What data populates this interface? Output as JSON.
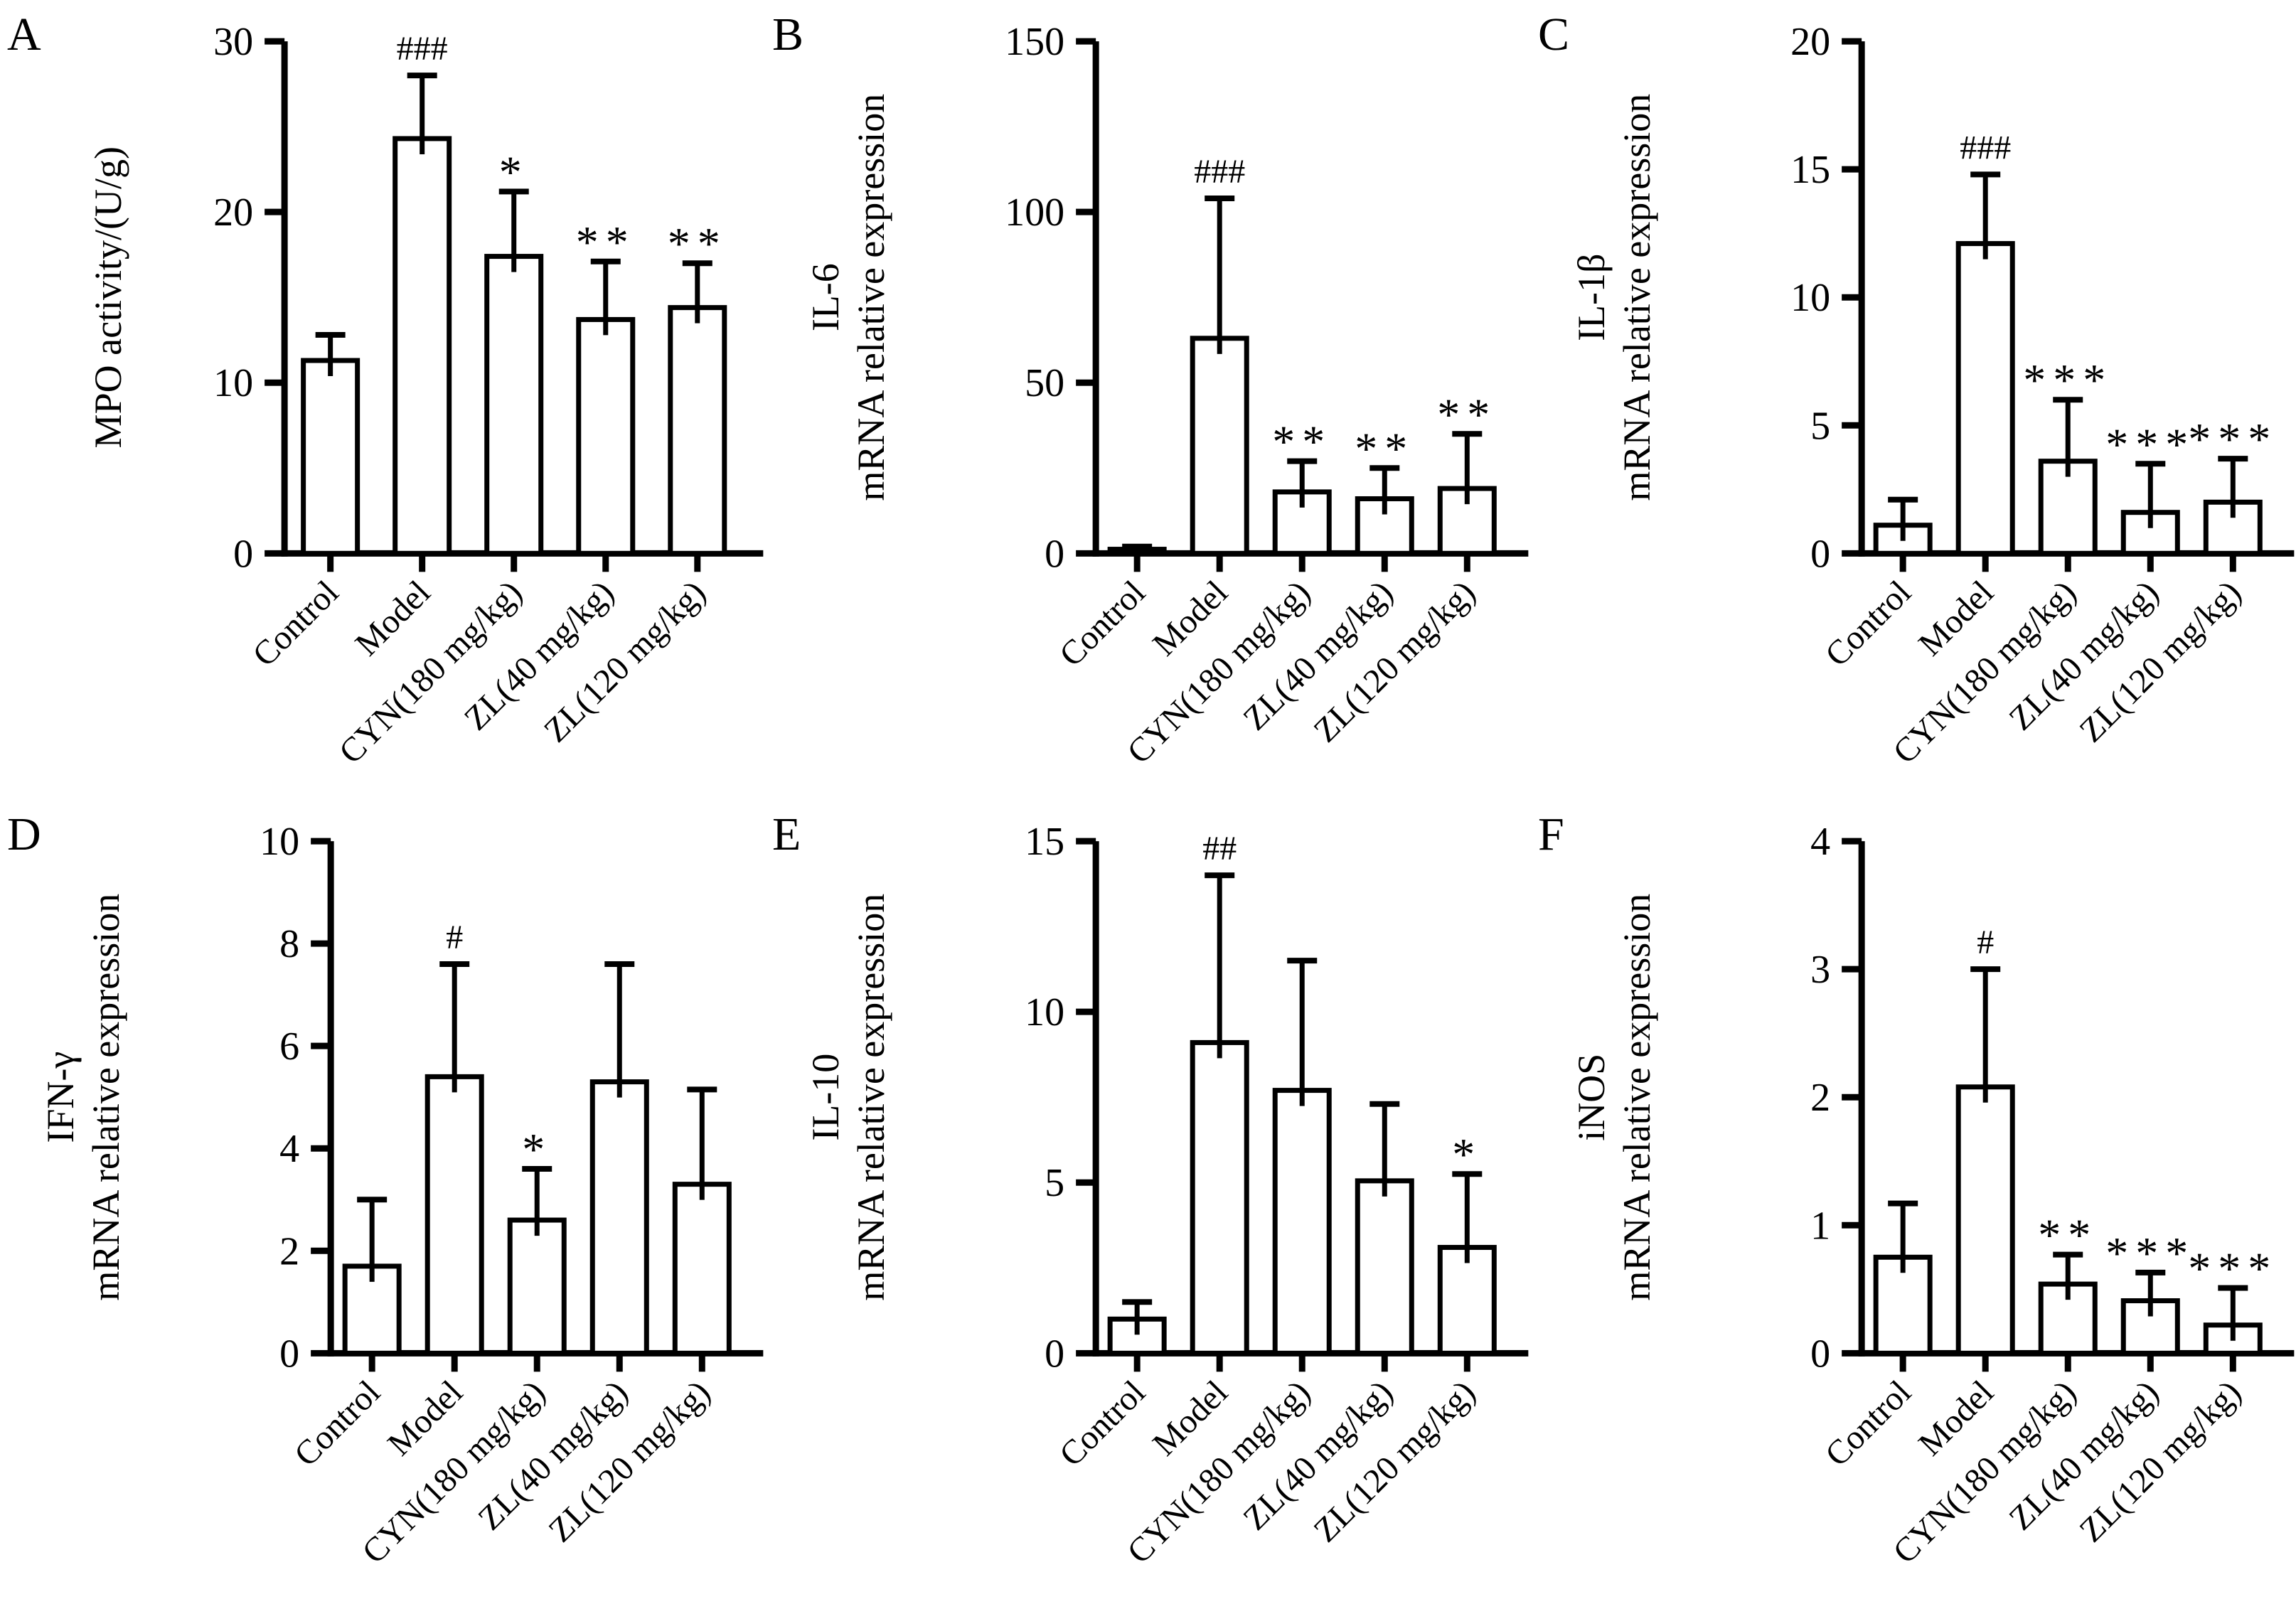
{
  "figure": {
    "background_color": "#ffffff",
    "ink_color": "#000000",
    "bar_fill_color": "#ffffff",
    "panel_letters": [
      "A",
      "B",
      "C",
      "D",
      "E",
      "F"
    ]
  },
  "chart_data": [
    {
      "type": "bar",
      "panel": "A",
      "ylabel_lines": [
        "MPO activity/(U/g)"
      ],
      "categories": [
        "Control",
        "Model",
        "CYN(180 mg/kg)",
        "ZL(40 mg/kg)",
        "ZL(120 mg/kg)"
      ],
      "values": [
        11.3,
        24.3,
        17.4,
        13.7,
        14.4
      ],
      "errors": [
        1.5,
        3.7,
        3.8,
        3.4,
        2.6
      ],
      "annotations": [
        "",
        "###",
        "*",
        "**",
        "**"
      ],
      "ylim": [
        0,
        30
      ],
      "yticks": [
        0,
        10,
        20,
        30
      ],
      "grid": "off",
      "legend": "none"
    },
    {
      "type": "bar",
      "panel": "B",
      "ylabel_lines": [
        "IL-6",
        "mRNA relative expression"
      ],
      "categories": [
        "Control",
        "Model",
        "CYN(180 mg/kg)",
        "ZL(40 mg/kg)",
        "ZL(120 mg/kg)"
      ],
      "values": [
        1.2,
        63,
        18,
        16,
        19
      ],
      "errors": [
        0.8,
        41,
        9,
        9,
        16
      ],
      "annotations": [
        "",
        "###",
        "**",
        "**",
        "**"
      ],
      "ylim": [
        0,
        150
      ],
      "yticks": [
        0,
        50,
        100,
        150
      ],
      "grid": "off",
      "legend": "none"
    },
    {
      "type": "bar",
      "panel": "C",
      "ylabel_lines": [
        "IL-1β",
        "mRNA relative expression"
      ],
      "categories": [
        "Control",
        "Model",
        "CYN(180 mg/kg)",
        "ZL(40 mg/kg)",
        "ZL(120 mg/kg)"
      ],
      "values": [
        1.1,
        12.1,
        3.6,
        1.6,
        2.0
      ],
      "errors": [
        1.0,
        2.7,
        2.4,
        1.9,
        1.7
      ],
      "annotations": [
        "",
        "###",
        "***",
        "***",
        "***"
      ],
      "ylim": [
        0,
        20
      ],
      "yticks": [
        0,
        5,
        10,
        15,
        20
      ],
      "grid": "off",
      "legend": "none"
    },
    {
      "type": "bar",
      "panel": "D",
      "ylabel_lines": [
        "IFN-γ",
        "mRNA relative expression"
      ],
      "categories": [
        "Control",
        "Model",
        "CYN(180 mg/kg)",
        "ZL(40 mg/kg)",
        "ZL(120 mg/kg)"
      ],
      "values": [
        1.7,
        5.4,
        2.6,
        5.3,
        3.3
      ],
      "errors": [
        1.3,
        2.2,
        1.0,
        2.3,
        1.85
      ],
      "annotations": [
        "",
        "#",
        "*",
        "",
        ""
      ],
      "ylim": [
        0,
        10
      ],
      "yticks": [
        0,
        2,
        4,
        6,
        8,
        10
      ],
      "grid": "off",
      "legend": "none"
    },
    {
      "type": "bar",
      "panel": "E",
      "ylabel_lines": [
        "IL-10",
        "mRNA relative expression"
      ],
      "categories": [
        "Control",
        "Model",
        "CYN(180 mg/kg)",
        "ZL(40 mg/kg)",
        "ZL(120 mg/kg)"
      ],
      "values": [
        1.0,
        9.1,
        7.7,
        5.05,
        3.1
      ],
      "errors": [
        0.5,
        4.9,
        3.8,
        2.25,
        2.15
      ],
      "annotations": [
        "",
        "##",
        "",
        "",
        "*"
      ],
      "ylim": [
        0,
        15
      ],
      "yticks": [
        0,
        5,
        10,
        15
      ],
      "grid": "off",
      "legend": "none"
    },
    {
      "type": "bar",
      "panel": "F",
      "ylabel_lines": [
        "iNOS",
        "mRNA relative expression"
      ],
      "categories": [
        "Control",
        "Model",
        "CYN(180 mg/kg)",
        "ZL(40 mg/kg)",
        "ZL(120 mg/kg)"
      ],
      "values": [
        0.75,
        2.08,
        0.54,
        0.41,
        0.22
      ],
      "errors": [
        0.42,
        0.92,
        0.23,
        0.22,
        0.29
      ],
      "annotations": [
        "",
        "#",
        "**",
        "***",
        "***"
      ],
      "ylim": [
        0,
        4
      ],
      "yticks": [
        0,
        1,
        2,
        3,
        4
      ],
      "grid": "off",
      "legend": "none"
    }
  ]
}
